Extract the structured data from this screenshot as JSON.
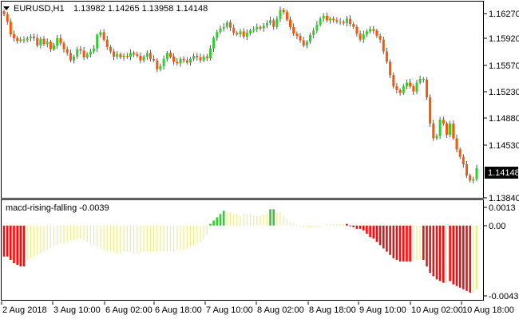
{
  "window": {
    "title_arrow_icon": "triangle-down-icon",
    "symbol": "EURUSD,H1",
    "ohlc": "1.13982 1.14265 1.13958 1.14148"
  },
  "indicator": {
    "label": "macd-rising-falling -0.0039"
  },
  "price_axis": {
    "ticks": [
      "1.16270",
      "1.15920",
      "1.15570",
      "1.15230",
      "1.14880",
      "1.14530",
      "1.13840"
    ],
    "current_price": "1.14148"
  },
  "indicator_axis": {
    "ticks": [
      "0.0013",
      "0.00",
      "-0.0043"
    ]
  },
  "time_axis": {
    "ticks": [
      "2 Aug 2018",
      "3 Aug 10:00",
      "6 Aug 02:00",
      "6 Aug 18:00",
      "7 Aug 10:00",
      "8 Aug 02:00",
      "8 Aug 18:00",
      "9 Aug 10:00",
      "10 Aug 02:00",
      "10 Aug 18:00"
    ]
  },
  "colors": {
    "bull": "#33cc33",
    "bear": "#ff5500",
    "wick": "#333333",
    "hist_red": "#ee1111",
    "hist_yellow": "#eeee88",
    "hist_green": "#33cc33",
    "border": "#000000"
  },
  "chart_data": [
    {
      "type": "candlestick",
      "title": "EURUSD,H1",
      "ylim": [
        1.1377,
        1.1637
      ],
      "current_price": 1.14148,
      "closes": [
        1.1622,
        1.1612,
        1.1595,
        1.159,
        1.1586,
        1.1588,
        1.1587,
        1.159,
        1.1592,
        1.159,
        1.158,
        1.1589,
        1.1582,
        1.1585,
        1.1575,
        1.158,
        1.159,
        1.1583,
        1.1575,
        1.157,
        1.156,
        1.1565,
        1.1575,
        1.1573,
        1.1564,
        1.1568,
        1.1572,
        1.1576,
        1.1594,
        1.1598,
        1.1588,
        1.1578,
        1.1572,
        1.1565,
        1.1568,
        1.1564,
        1.1566,
        1.1565,
        1.157,
        1.1568,
        1.1566,
        1.156,
        1.1565,
        1.157,
        1.1562,
        1.156,
        1.1548,
        1.1552,
        1.1562,
        1.157,
        1.1565,
        1.1558,
        1.1556,
        1.1562,
        1.156,
        1.1557,
        1.1562,
        1.1566,
        1.1564,
        1.156,
        1.1565,
        1.1563,
        1.1576,
        1.159,
        1.1598,
        1.1603,
        1.1605,
        1.1611,
        1.1604,
        1.1597,
        1.1595,
        1.1599,
        1.1592,
        1.1597,
        1.16,
        1.1602,
        1.1605,
        1.1603,
        1.1607,
        1.161,
        1.1614,
        1.1605,
        1.1616,
        1.1628,
        1.1625,
        1.1615,
        1.1605,
        1.1596,
        1.1593,
        1.1587,
        1.158,
        1.1585,
        1.1594,
        1.16,
        1.1608,
        1.1616,
        1.162,
        1.1614,
        1.1616,
        1.1614,
        1.1612,
        1.1612,
        1.161,
        1.1616,
        1.1609,
        1.1605,
        1.1596,
        1.1588,
        1.1595,
        1.1599,
        1.1602,
        1.16,
        1.1593,
        1.1588,
        1.1572,
        1.1558,
        1.154,
        1.1525,
        1.152,
        1.1516,
        1.1525,
        1.153,
        1.1525,
        1.1518,
        1.153,
        1.1535,
        1.1534,
        1.151,
        1.1475,
        1.1455,
        1.1458,
        1.148,
        1.1475,
        1.146,
        1.1475,
        1.1455,
        1.144,
        1.143,
        1.142,
        1.1405,
        1.1398,
        1.14,
        1.1415
      ]
    },
    {
      "type": "bar",
      "title": "macd-rising-falling -0.0039",
      "value": -0.0039,
      "ylim": [
        -0.0045,
        0.0015
      ],
      "values": [
        -0.0019,
        -0.0019,
        -0.0021,
        -0.0023,
        -0.0024,
        -0.0025,
        -0.0025,
        -0.0021,
        -0.002,
        -0.0019,
        -0.0018,
        -0.0017,
        -0.0016,
        -0.0015,
        -0.0014,
        -0.0013,
        -0.0012,
        -0.0011,
        -0.0011,
        -0.001,
        -0.0009,
        -0.0009,
        -0.0008,
        -0.0008,
        -0.0009,
        -0.001,
        -0.0011,
        -0.0012,
        -0.0013,
        -0.0014,
        -0.0015,
        -0.0016,
        -0.0016,
        -0.0016,
        -0.0017,
        -0.0017,
        -0.0016,
        -0.0016,
        -0.0016,
        -0.0017,
        -0.0017,
        -0.0016,
        -0.0016,
        -0.0016,
        -0.0016,
        -0.0016,
        -0.0016,
        -0.0016,
        -0.0016,
        -0.0016,
        -0.0016,
        -0.0016,
        -0.0015,
        -0.0015,
        -0.0015,
        -0.0014,
        -0.0013,
        -0.0012,
        -0.0011,
        -0.001,
        -0.0008,
        -0.0006,
        0.0001,
        0.0003,
        0.0005,
        0.0007,
        0.0009,
        0.0008,
        0.0008,
        0.0007,
        0.0007,
        0.0006,
        0.0007,
        0.0007,
        0.0007,
        0.0006,
        0.0006,
        0.0006,
        0.0007,
        0.0007,
        0.001,
        0.001,
        0.0008,
        0.0008,
        0.0006,
        0.0004,
        0.0002,
        0.0001,
        0.0,
        0.0,
        -0.0001,
        -0.0001,
        -0.0001,
        -0.0001,
        -0.0001,
        0.0,
        0.0,
        0.0001,
        0.0001,
        0.0001,
        0.0001,
        0.0001,
        0.0001,
        0.0001,
        0.0,
        -0.0001,
        -0.0002,
        -0.0002,
        -0.0003,
        -0.0005,
        -0.0007,
        -0.0008,
        -0.001,
        -0.0012,
        -0.0014,
        -0.0016,
        -0.0018,
        -0.002,
        -0.0021,
        -0.0022,
        -0.0022,
        -0.0022,
        -0.0022,
        -0.0022,
        -0.0021,
        -0.0021,
        -0.0021,
        -0.0025,
        -0.0029,
        -0.0031,
        -0.0033,
        -0.0034,
        -0.0035,
        -0.0035,
        -0.0034,
        -0.0036,
        -0.0037,
        -0.0038,
        -0.0039,
        -0.004,
        -0.0041,
        -0.0041,
        -0.0039
      ],
      "colors_by_bar": "r,r,r,r,r,r,r,y,y,y,y,y,y,y,y,y,y,y,y,y,y,y,y,y,y,y,y,y,y,y,y,y,y,y,y,y,y,y,y,y,y,y,y,y,y,y,y,y,y,y,y,y,y,y,y,y,y,y,y,y,y,y,g,g,g,g,g,y,y,y,y,y,y,y,y,y,y,y,y,y,g,g,y,y,y,y,y,y,y,y,y,y,y,y,y,y,y,y,y,y,y,y,y,r,r,r,r,r,r,r,r,r,r,r,r,r,r,r,r,r,r,r,r,y,y,y,r,r,r,r,r,r,r,y,r,r,r,r,r,r,r,y"
    }
  ]
}
